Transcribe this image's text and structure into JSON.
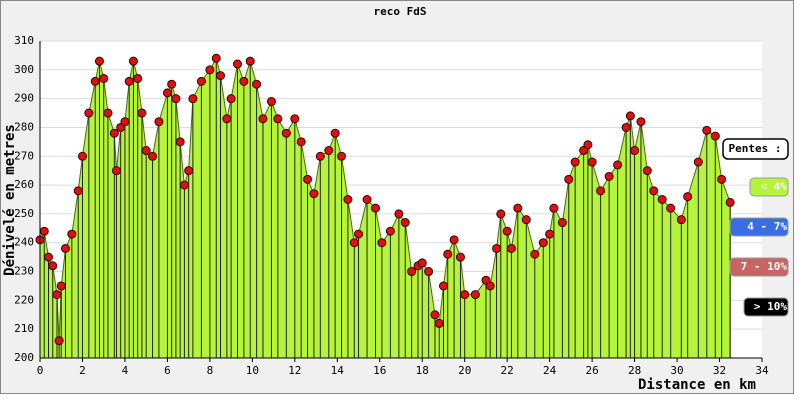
{
  "chart_data": {
    "type": "area",
    "title": "reco FdS",
    "x_label": "Distance en km",
    "y_label": "Dénivelé en metres",
    "x": [
      0,
      0.2,
      0.4,
      0.6,
      0.8,
      0.9,
      1.0,
      1.2,
      1.5,
      1.8,
      2.0,
      2.3,
      2.6,
      2.8,
      3.0,
      3.2,
      3.5,
      3.6,
      3.8,
      4.0,
      4.2,
      4.4,
      4.6,
      4.8,
      5.0,
      5.3,
      5.6,
      6.0,
      6.2,
      6.4,
      6.6,
      6.8,
      7.0,
      7.2,
      7.6,
      8.0,
      8.3,
      8.5,
      8.8,
      9.0,
      9.3,
      9.6,
      9.9,
      10.2,
      10.5,
      10.9,
      11.2,
      11.6,
      12.0,
      12.3,
      12.6,
      12.9,
      13.2,
      13.6,
      13.9,
      14.2,
      14.5,
      14.8,
      15.0,
      15.4,
      15.8,
      16.1,
      16.5,
      16.9,
      17.2,
      17.5,
      17.8,
      18.0,
      18.3,
      18.6,
      18.8,
      19.0,
      19.2,
      19.5,
      19.8,
      20.0,
      20.5,
      21.0,
      21.2,
      21.5,
      21.7,
      22.0,
      22.2,
      22.5,
      22.9,
      23.3,
      23.7,
      24.0,
      24.2,
      24.6,
      24.9,
      25.2,
      25.6,
      25.8,
      26.0,
      26.4,
      26.8,
      27.2,
      27.6,
      27.8,
      28.0,
      28.3,
      28.6,
      28.9,
      29.3,
      29.7,
      30.2,
      30.5,
      31.0,
      31.4,
      31.8,
      32.1,
      32.5
    ],
    "y": [
      241,
      244,
      235,
      232,
      222,
      206,
      225,
      238,
      243,
      258,
      270,
      285,
      296,
      303,
      297,
      285,
      278,
      265,
      280,
      282,
      296,
      303,
      297,
      285,
      272,
      270,
      282,
      292,
      295,
      290,
      275,
      260,
      265,
      290,
      296,
      300,
      304,
      298,
      283,
      290,
      302,
      296,
      303,
      295,
      283,
      289,
      283,
      278,
      283,
      275,
      262,
      257,
      270,
      272,
      278,
      270,
      255,
      240,
      243,
      255,
      252,
      240,
      244,
      250,
      247,
      230,
      232,
      233,
      230,
      215,
      212,
      225,
      236,
      241,
      235,
      222,
      222,
      227,
      225,
      238,
      250,
      244,
      238,
      252,
      248,
      236,
      240,
      243,
      252,
      247,
      262,
      268,
      272,
      274,
      268,
      258,
      263,
      267,
      280,
      284,
      272,
      282,
      265,
      258,
      255,
      252,
      248,
      256,
      268,
      279,
      277,
      262,
      254
    ],
    "fill_color": "#b4f53c",
    "marker_color": "#e01010",
    "xlim": [
      0,
      34
    ],
    "xticks": [
      0,
      2,
      4,
      6,
      8,
      10,
      12,
      14,
      16,
      18,
      20,
      22,
      24,
      26,
      28,
      30,
      32,
      34
    ],
    "ylim": [
      200,
      310
    ],
    "yticks": [
      200,
      210,
      220,
      230,
      240,
      250,
      260,
      270,
      280,
      290,
      300,
      310
    ],
    "grid": true,
    "legend": {
      "title": "Pentes :",
      "items": [
        {
          "label": "< 4%",
          "color": "#b4f53c",
          "text_color": "#ffffff"
        },
        {
          "label": "4 - 7%",
          "color": "#3a6ee0",
          "text_color": "#ffffff"
        },
        {
          "label": "7 - 10%",
          "color": "#c86464",
          "text_color": "#ffffff"
        },
        {
          "label": "> 10%",
          "color": "#000000",
          "text_color": "#ffffff"
        }
      ]
    }
  }
}
